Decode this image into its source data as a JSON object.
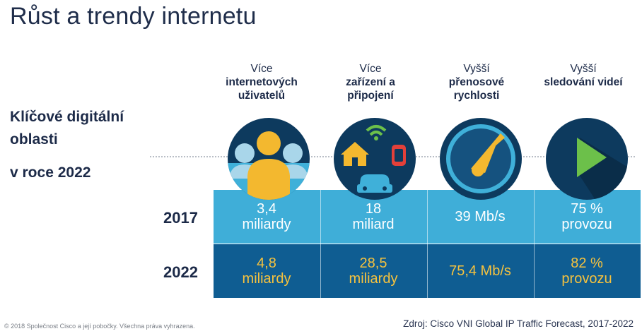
{
  "title": "Růst a trendy internetu",
  "side": {
    "line1": "Klíčové digitální oblasti",
    "line2": "v roce 2022"
  },
  "columns": [
    {
      "head_top": "Více",
      "head_bold": "internetových uživatelů",
      "icon": "users-icon",
      "v2017": [
        "3,4",
        "miliardy"
      ],
      "v2022": [
        "4,8",
        "miliardy"
      ]
    },
    {
      "head_top": "Více",
      "head_bold": "zařízení a připojení",
      "icon": "devices-icon",
      "v2017": [
        "18",
        "miliard"
      ],
      "v2022": [
        "28,5",
        "miliardy"
      ]
    },
    {
      "head_top": "Vyšší",
      "head_bold": "přenosové rychlosti",
      "icon": "speedometer-icon",
      "v2017": [
        "39 Mb/s",
        ""
      ],
      "v2022": [
        "75,4 Mb/s",
        ""
      ]
    },
    {
      "head_top": "Vyšší",
      "head_bold": "sledování videí",
      "icon": "play-icon",
      "v2017": [
        "75 %",
        "provozu"
      ],
      "v2022": [
        "82 %",
        "provozu"
      ]
    }
  ],
  "years": {
    "y1": "2017",
    "y2": "2022"
  },
  "colors": {
    "band_2017": "#3faed8",
    "band_2022": "#0f5d92",
    "value_2022": "#f6c23e",
    "circle": "#0d3a5e"
  },
  "footer": {
    "left": "© 2018 Společnost Cisco a její pobočky. Všechna práva vyhrazena.",
    "right": "Zdroj: Cisco VNI Global IP Traffic Forecast, 2017-2022"
  }
}
